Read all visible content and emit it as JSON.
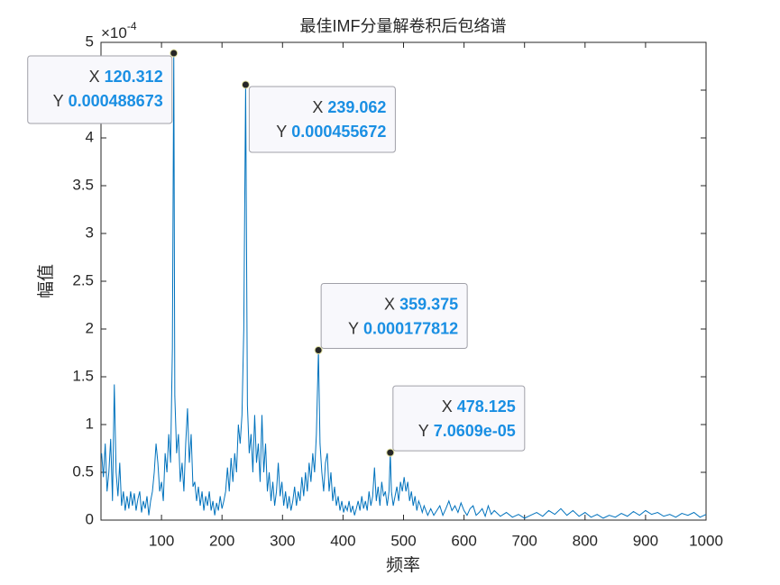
{
  "chart_data": {
    "type": "line",
    "title": "最佳IMF分量解卷积后包络谱",
    "x_label": "频率",
    "y_label": "幅值",
    "y_scale_label": {
      "base": "×10",
      "exponent": "-4"
    },
    "xlim": [
      0,
      1000
    ],
    "xticks": [
      100,
      200,
      300,
      400,
      500,
      600,
      700,
      800,
      900,
      1000
    ],
    "ylim": [
      0,
      5
    ],
    "yticks": [
      0,
      0.5,
      1,
      1.5,
      2,
      2.5,
      3,
      3.5,
      4,
      4.5,
      5
    ],
    "grid": false,
    "series": [
      {
        "color": "#0072bd",
        "x": [
          1,
          4,
          7,
          10,
          13,
          16,
          19,
          22,
          25,
          28,
          31,
          34,
          37,
          40,
          43,
          46,
          49,
          52,
          55,
          58,
          61,
          64,
          67,
          70,
          73,
          76,
          79,
          82,
          85,
          88,
          91,
          94,
          97,
          100,
          103,
          106,
          109,
          112,
          115,
          118,
          120.312,
          122,
          125,
          128,
          131,
          134,
          137,
          140,
          143,
          146,
          149,
          152,
          155,
          158,
          161,
          164,
          167,
          170,
          173,
          176,
          179,
          182,
          185,
          188,
          191,
          194,
          197,
          200,
          203,
          206,
          209,
          212,
          215,
          218,
          221,
          224,
          227,
          230,
          233,
          236,
          239.062,
          242,
          245,
          248,
          251,
          254,
          257,
          260,
          263,
          266,
          269,
          272,
          275,
          278,
          281,
          284,
          287,
          290,
          293,
          296,
          299,
          302,
          305,
          308,
          311,
          314,
          317,
          320,
          323,
          326,
          329,
          332,
          335,
          338,
          341,
          344,
          347,
          350,
          353,
          356,
          359.375,
          362,
          365,
          368,
          371,
          374,
          377,
          380,
          383,
          386,
          389,
          392,
          395,
          398,
          401,
          404,
          407,
          410,
          413,
          416,
          419,
          422,
          425,
          428,
          431,
          434,
          437,
          440,
          443,
          446,
          449,
          452,
          455,
          458,
          461,
          464,
          467,
          470,
          473,
          476,
          478.125,
          480,
          483,
          486,
          489,
          492,
          495,
          498,
          501,
          504,
          507,
          510,
          513,
          516,
          519,
          522,
          525,
          528,
          531,
          534,
          537,
          540,
          545,
          550,
          555,
          560,
          565,
          570,
          575,
          580,
          585,
          590,
          595,
          600,
          605,
          610,
          615,
          620,
          625,
          630,
          635,
          640,
          645,
          650,
          660,
          670,
          680,
          690,
          700,
          710,
          720,
          730,
          740,
          750,
          760,
          770,
          780,
          790,
          800,
          810,
          820,
          830,
          840,
          850,
          860,
          870,
          880,
          890,
          900,
          910,
          920,
          930,
          940,
          950,
          960,
          970,
          980,
          990,
          1000
        ],
        "values": [
          0.7,
          0.45,
          0.8,
          0.3,
          0.5,
          0.85,
          0.2,
          1.42,
          0.5,
          0.25,
          0.6,
          0.15,
          0.3,
          0.1,
          0.25,
          0.12,
          0.3,
          0.15,
          0.28,
          0.1,
          0.22,
          0.3,
          0.08,
          0.2,
          0.12,
          0.25,
          0.05,
          0.2,
          0.3,
          0.5,
          0.8,
          0.6,
          0.3,
          0.4,
          0.2,
          0.7,
          0.5,
          0.9,
          0.6,
          1.8,
          4.88673,
          1.3,
          0.7,
          0.9,
          0.4,
          0.6,
          0.3,
          0.8,
          1.17,
          0.6,
          0.9,
          0.35,
          0.4,
          0.2,
          0.35,
          0.15,
          0.3,
          0.1,
          0.25,
          0.15,
          0.3,
          0.1,
          0.2,
          0.05,
          0.18,
          0.1,
          0.25,
          0.12,
          0.2,
          0.3,
          0.55,
          0.3,
          0.65,
          0.4,
          0.7,
          0.5,
          1.0,
          0.8,
          1.1,
          2.0,
          4.55672,
          1.2,
          0.7,
          0.9,
          0.5,
          1.1,
          0.6,
          0.8,
          0.4,
          1.1,
          0.5,
          0.8,
          0.3,
          0.5,
          0.2,
          0.4,
          0.15,
          0.3,
          0.6,
          0.25,
          0.4,
          0.15,
          0.3,
          0.12,
          0.25,
          0.1,
          0.2,
          0.35,
          0.15,
          0.3,
          0.2,
          0.45,
          0.25,
          0.5,
          0.3,
          0.6,
          0.4,
          0.7,
          0.5,
          0.9,
          1.77812,
          0.8,
          0.5,
          0.3,
          0.6,
          0.7,
          0.3,
          0.5,
          0.2,
          0.35,
          0.15,
          0.25,
          0.1,
          0.2,
          0.08,
          0.15,
          0.1,
          0.2,
          0.08,
          0.15,
          0.05,
          0.12,
          0.2,
          0.1,
          0.25,
          0.12,
          0.2,
          0.1,
          0.3,
          0.15,
          0.25,
          0.55,
          0.2,
          0.35,
          0.15,
          0.4,
          0.25,
          0.3,
          0.15,
          0.3,
          0.70609,
          0.3,
          0.15,
          0.25,
          0.35,
          0.2,
          0.4,
          0.3,
          0.45,
          0.3,
          0.4,
          0.2,
          0.3,
          0.15,
          0.25,
          0.1,
          0.2,
          0.15,
          0.08,
          0.15,
          0.1,
          0.05,
          0.12,
          0.05,
          0.1,
          0.15,
          0.05,
          0.12,
          0.2,
          0.1,
          0.15,
          0.08,
          0.18,
          0.1,
          0.05,
          0.12,
          0.15,
          0.05,
          0.08,
          0.12,
          0.04,
          0.15,
          0.06,
          0.1,
          0.04,
          0.08,
          0.03,
          0.06,
          0.02,
          0.05,
          0.08,
          0.04,
          0.1,
          0.06,
          0.12,
          0.05,
          0.1,
          0.04,
          0.08,
          0.03,
          0.06,
          0.02,
          0.05,
          0.03,
          0.07,
          0.04,
          0.09,
          0.05,
          0.1,
          0.06,
          0.08,
          0.04,
          0.06,
          0.03,
          0.07,
          0.05,
          0.08,
          0.03,
          0.06
        ]
      }
    ],
    "tip_x_prefix": "X",
    "tip_y_prefix": "Y",
    "annotations": [
      {
        "x": 120.312,
        "y": 4.88673,
        "x_label": "120.312",
        "y_label": "0.000488673"
      },
      {
        "x": 239.062,
        "y": 4.55672,
        "x_label": "239.062",
        "y_label": "0.000455672"
      },
      {
        "x": 359.375,
        "y": 1.77812,
        "x_label": "359.375",
        "y_label": "0.000177812"
      },
      {
        "x": 478.125,
        "y": 0.70609,
        "x_label": "478.125",
        "y_label": "7.0609e-05"
      }
    ]
  }
}
